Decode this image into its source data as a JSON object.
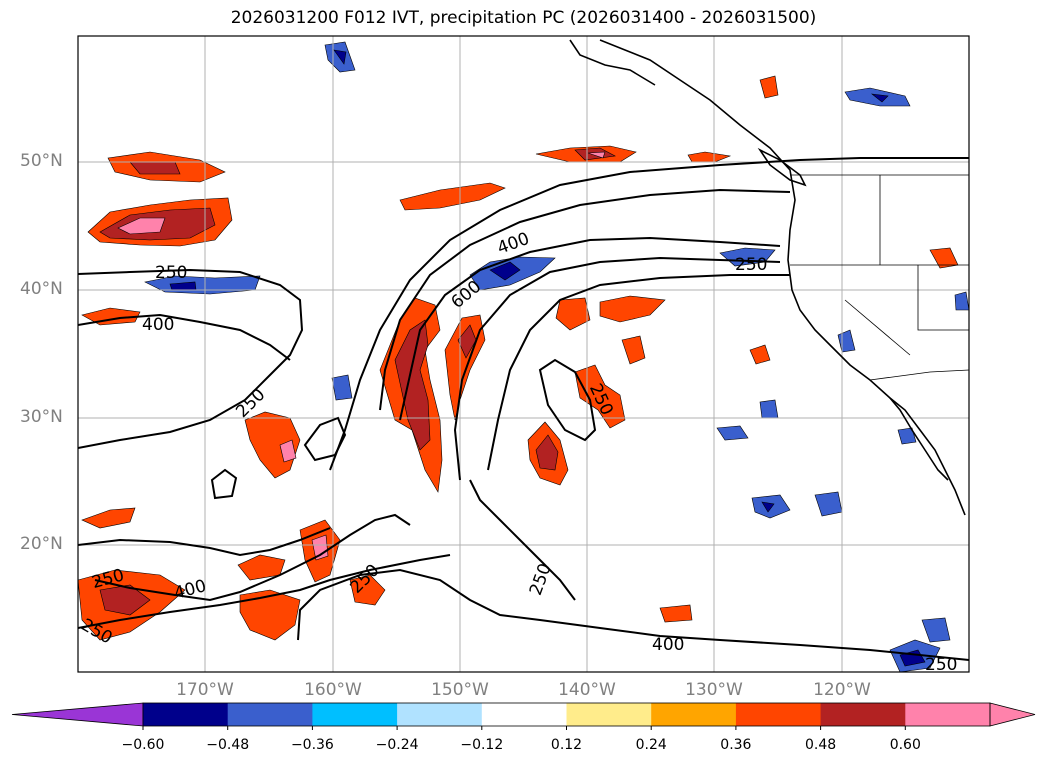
{
  "title": "2026031200 F012 IVT, precipitation PC (2026031400 - 2026031500)",
  "lat_labels": [
    "50°N",
    "40°N",
    "30°N",
    "20°N"
  ],
  "lon_labels": [
    "170°W",
    "160°W",
    "150°W",
    "140°W",
    "130°W",
    "120°W"
  ],
  "contour_labels": [
    "250",
    "400",
    "250",
    "400",
    "600",
    "250",
    "250",
    "250",
    "400",
    "250",
    "250",
    "400",
    "250",
    "250"
  ],
  "colorbar": {
    "ticks": [
      "−0.60",
      "−0.48",
      "−0.36",
      "−0.24",
      "−0.12",
      "0.12",
      "0.24",
      "0.36",
      "0.48",
      "0.60"
    ],
    "colors": [
      "#9a35d6",
      "#00008b",
      "#3a5fcd",
      "#00bfff",
      "#b0e2ff",
      "#ffffff",
      "#ffec8b",
      "#ffa500",
      "#ff4500",
      "#b22222",
      "#ff82ab",
      "#ff82ab"
    ]
  }
}
